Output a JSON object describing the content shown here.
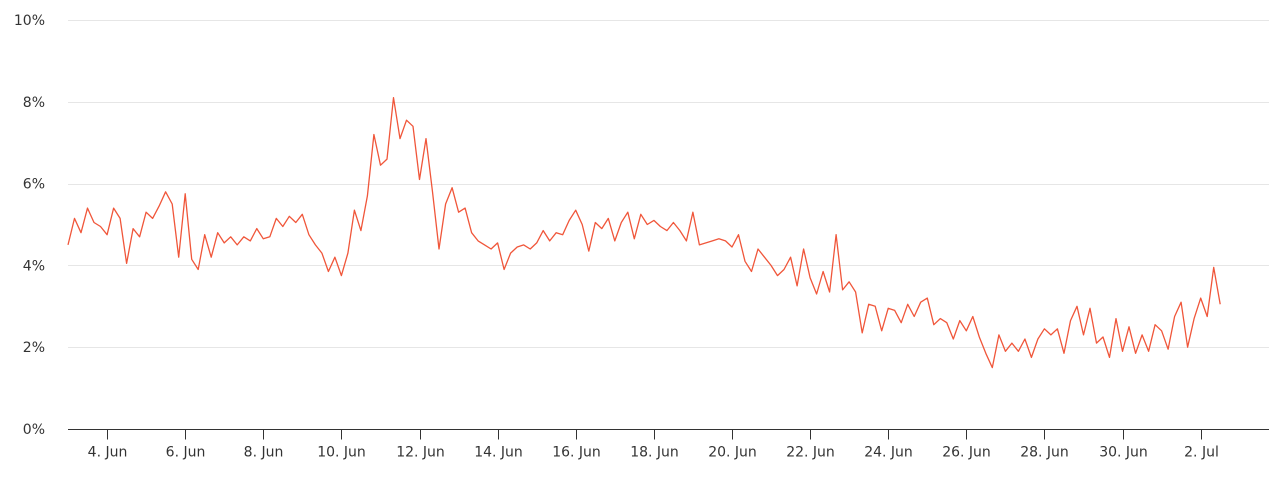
{
  "chart_data": {
    "type": "line",
    "title": "",
    "xlabel": "",
    "ylabel": "",
    "ylim": [
      0,
      10
    ],
    "y_ticks": [
      "0%",
      "2%",
      "4%",
      "6%",
      "8%",
      "10%"
    ],
    "y_tick_values": [
      0,
      2,
      4,
      6,
      8,
      10
    ],
    "x_ticks": [
      "4. Jun",
      "6. Jun",
      "8. Jun",
      "10. Jun",
      "12. Jun",
      "14. Jun",
      "16. Jun",
      "18. Jun",
      "20. Jun",
      "22. Jun",
      "24. Jun",
      "26. Jun",
      "28. Jun",
      "30. Jun",
      "2. Jul"
    ],
    "x_tick_values": [
      "2024-06-04",
      "2024-06-06",
      "2024-06-08",
      "2024-06-10",
      "2024-06-12",
      "2024-06-14",
      "2024-06-16",
      "2024-06-18",
      "2024-06-20",
      "2024-06-22",
      "2024-06-24",
      "2024-06-26",
      "2024-06-28",
      "2024-06-30",
      "2024-07-02"
    ],
    "xlim": [
      "2024-06-03 00:00",
      "2024-07-03 18:00"
    ],
    "grid": "horizontal",
    "legend": "none",
    "series": [
      {
        "color": "#f0563a",
        "points": [
          [
            "2024-06-03 00:00",
            4.5
          ],
          [
            "2024-06-03 04:00",
            5.15
          ],
          [
            "2024-06-03 08:00",
            4.8
          ],
          [
            "2024-06-03 12:00",
            5.4
          ],
          [
            "2024-06-03 16:00",
            5.05
          ],
          [
            "2024-06-03 20:00",
            4.95
          ],
          [
            "2024-06-04 00:00",
            4.75
          ],
          [
            "2024-06-04 04:00",
            5.4
          ],
          [
            "2024-06-04 08:00",
            5.15
          ],
          [
            "2024-06-04 12:00",
            4.05
          ],
          [
            "2024-06-04 16:00",
            4.9
          ],
          [
            "2024-06-04 20:00",
            4.7
          ],
          [
            "2024-06-05 00:00",
            5.3
          ],
          [
            "2024-06-05 04:00",
            5.15
          ],
          [
            "2024-06-05 08:00",
            5.45
          ],
          [
            "2024-06-05 12:00",
            5.8
          ],
          [
            "2024-06-05 16:00",
            5.5
          ],
          [
            "2024-06-05 20:00",
            4.2
          ],
          [
            "2024-06-06 00:00",
            5.75
          ],
          [
            "2024-06-06 04:00",
            4.15
          ],
          [
            "2024-06-06 08:00",
            3.9
          ],
          [
            "2024-06-06 12:00",
            4.75
          ],
          [
            "2024-06-06 16:00",
            4.2
          ],
          [
            "2024-06-06 20:00",
            4.8
          ],
          [
            "2024-06-07 00:00",
            4.55
          ],
          [
            "2024-06-07 04:00",
            4.7
          ],
          [
            "2024-06-07 08:00",
            4.5
          ],
          [
            "2024-06-07 12:00",
            4.7
          ],
          [
            "2024-06-07 16:00",
            4.6
          ],
          [
            "2024-06-07 20:00",
            4.9
          ],
          [
            "2024-06-08 00:00",
            4.65
          ],
          [
            "2024-06-08 04:00",
            4.7
          ],
          [
            "2024-06-08 08:00",
            5.15
          ],
          [
            "2024-06-08 12:00",
            4.95
          ],
          [
            "2024-06-08 16:00",
            5.2
          ],
          [
            "2024-06-08 20:00",
            5.05
          ],
          [
            "2024-06-09 00:00",
            5.25
          ],
          [
            "2024-06-09 04:00",
            4.75
          ],
          [
            "2024-06-09 08:00",
            4.5
          ],
          [
            "2024-06-09 12:00",
            4.3
          ],
          [
            "2024-06-09 16:00",
            3.85
          ],
          [
            "2024-06-09 20:00",
            4.2
          ],
          [
            "2024-06-10 00:00",
            3.75
          ],
          [
            "2024-06-10 04:00",
            4.3
          ],
          [
            "2024-06-10 08:00",
            5.35
          ],
          [
            "2024-06-10 12:00",
            4.85
          ],
          [
            "2024-06-10 16:00",
            5.7
          ],
          [
            "2024-06-10 20:00",
            7.2
          ],
          [
            "2024-06-11 00:00",
            6.45
          ],
          [
            "2024-06-11 04:00",
            6.6
          ],
          [
            "2024-06-11 08:00",
            8.1
          ],
          [
            "2024-06-11 12:00",
            7.1
          ],
          [
            "2024-06-11 16:00",
            7.55
          ],
          [
            "2024-06-11 20:00",
            7.4
          ],
          [
            "2024-06-12 00:00",
            6.1
          ],
          [
            "2024-06-12 04:00",
            7.1
          ],
          [
            "2024-06-12 08:00",
            5.8
          ],
          [
            "2024-06-12 12:00",
            4.4
          ],
          [
            "2024-06-12 16:00",
            5.5
          ],
          [
            "2024-06-12 20:00",
            5.9
          ],
          [
            "2024-06-13 00:00",
            5.3
          ],
          [
            "2024-06-13 04:00",
            5.4
          ],
          [
            "2024-06-13 08:00",
            4.8
          ],
          [
            "2024-06-13 12:00",
            4.6
          ],
          [
            "2024-06-13 16:00",
            4.5
          ],
          [
            "2024-06-13 20:00",
            4.4
          ],
          [
            "2024-06-14 00:00",
            4.55
          ],
          [
            "2024-06-14 04:00",
            3.9
          ],
          [
            "2024-06-14 08:00",
            4.3
          ],
          [
            "2024-06-14 12:00",
            4.45
          ],
          [
            "2024-06-14 16:00",
            4.5
          ],
          [
            "2024-06-14 20:00",
            4.4
          ],
          [
            "2024-06-15 00:00",
            4.55
          ],
          [
            "2024-06-15 04:00",
            4.85
          ],
          [
            "2024-06-15 08:00",
            4.6
          ],
          [
            "2024-06-15 12:00",
            4.8
          ],
          [
            "2024-06-15 16:00",
            4.75
          ],
          [
            "2024-06-15 20:00",
            5.1
          ],
          [
            "2024-06-16 00:00",
            5.35
          ],
          [
            "2024-06-16 04:00",
            5.0
          ],
          [
            "2024-06-16 08:00",
            4.35
          ],
          [
            "2024-06-16 12:00",
            5.05
          ],
          [
            "2024-06-16 16:00",
            4.9
          ],
          [
            "2024-06-16 20:00",
            5.15
          ],
          [
            "2024-06-17 00:00",
            4.6
          ],
          [
            "2024-06-17 04:00",
            5.05
          ],
          [
            "2024-06-17 08:00",
            5.3
          ],
          [
            "2024-06-17 12:00",
            4.65
          ],
          [
            "2024-06-17 16:00",
            5.25
          ],
          [
            "2024-06-17 20:00",
            5.0
          ],
          [
            "2024-06-18 00:00",
            5.1
          ],
          [
            "2024-06-18 04:00",
            4.95
          ],
          [
            "2024-06-18 08:00",
            4.85
          ],
          [
            "2024-06-18 12:00",
            5.05
          ],
          [
            "2024-06-18 16:00",
            4.85
          ],
          [
            "2024-06-18 20:00",
            4.6
          ],
          [
            "2024-06-19 00:00",
            5.3
          ],
          [
            "2024-06-19 04:00",
            4.5
          ],
          [
            "2024-06-19 08:00",
            4.55
          ],
          [
            "2024-06-19 12:00",
            4.6
          ],
          [
            "2024-06-19 16:00",
            4.65
          ],
          [
            "2024-06-19 20:00",
            4.6
          ],
          [
            "2024-06-20 00:00",
            4.45
          ],
          [
            "2024-06-20 04:00",
            4.75
          ],
          [
            "2024-06-20 08:00",
            4.1
          ],
          [
            "2024-06-20 12:00",
            3.85
          ],
          [
            "2024-06-20 16:00",
            4.4
          ],
          [
            "2024-06-20 20:00",
            4.2
          ],
          [
            "2024-06-21 00:00",
            4.0
          ],
          [
            "2024-06-21 04:00",
            3.75
          ],
          [
            "2024-06-21 08:00",
            3.9
          ],
          [
            "2024-06-21 12:00",
            4.2
          ],
          [
            "2024-06-21 16:00",
            3.5
          ],
          [
            "2024-06-21 20:00",
            4.4
          ],
          [
            "2024-06-22 00:00",
            3.7
          ],
          [
            "2024-06-22 04:00",
            3.3
          ],
          [
            "2024-06-22 08:00",
            3.85
          ],
          [
            "2024-06-22 12:00",
            3.35
          ],
          [
            "2024-06-22 16:00",
            4.75
          ],
          [
            "2024-06-22 20:00",
            3.4
          ],
          [
            "2024-06-23 00:00",
            3.6
          ],
          [
            "2024-06-23 04:00",
            3.35
          ],
          [
            "2024-06-23 08:00",
            2.35
          ],
          [
            "2024-06-23 12:00",
            3.05
          ],
          [
            "2024-06-23 16:00",
            3.0
          ],
          [
            "2024-06-23 20:00",
            2.4
          ],
          [
            "2024-06-24 00:00",
            2.95
          ],
          [
            "2024-06-24 04:00",
            2.9
          ],
          [
            "2024-06-24 08:00",
            2.6
          ],
          [
            "2024-06-24 12:00",
            3.05
          ],
          [
            "2024-06-24 16:00",
            2.75
          ],
          [
            "2024-06-24 20:00",
            3.1
          ],
          [
            "2024-06-25 00:00",
            3.2
          ],
          [
            "2024-06-25 04:00",
            2.55
          ],
          [
            "2024-06-25 08:00",
            2.7
          ],
          [
            "2024-06-25 12:00",
            2.6
          ],
          [
            "2024-06-25 16:00",
            2.2
          ],
          [
            "2024-06-25 20:00",
            2.65
          ],
          [
            "2024-06-26 00:00",
            2.4
          ],
          [
            "2024-06-26 04:00",
            2.75
          ],
          [
            "2024-06-26 08:00",
            2.25
          ],
          [
            "2024-06-26 12:00",
            1.85
          ],
          [
            "2024-06-26 16:00",
            1.5
          ],
          [
            "2024-06-26 20:00",
            2.3
          ],
          [
            "2024-06-27 00:00",
            1.9
          ],
          [
            "2024-06-27 04:00",
            2.1
          ],
          [
            "2024-06-27 08:00",
            1.9
          ],
          [
            "2024-06-27 12:00",
            2.2
          ],
          [
            "2024-06-27 16:00",
            1.75
          ],
          [
            "2024-06-27 20:00",
            2.2
          ],
          [
            "2024-06-28 00:00",
            2.45
          ],
          [
            "2024-06-28 04:00",
            2.3
          ],
          [
            "2024-06-28 08:00",
            2.45
          ],
          [
            "2024-06-28 12:00",
            1.85
          ],
          [
            "2024-06-28 16:00",
            2.65
          ],
          [
            "2024-06-28 20:00",
            3.0
          ],
          [
            "2024-06-29 00:00",
            2.3
          ],
          [
            "2024-06-29 04:00",
            2.95
          ],
          [
            "2024-06-29 08:00",
            2.1
          ],
          [
            "2024-06-29 12:00",
            2.25
          ],
          [
            "2024-06-29 16:00",
            1.75
          ],
          [
            "2024-06-29 20:00",
            2.7
          ],
          [
            "2024-06-30 00:00",
            1.9
          ],
          [
            "2024-06-30 04:00",
            2.5
          ],
          [
            "2024-06-30 08:00",
            1.85
          ],
          [
            "2024-06-30 12:00",
            2.3
          ],
          [
            "2024-06-30 16:00",
            1.9
          ],
          [
            "2024-06-30 20:00",
            2.55
          ],
          [
            "2024-07-01 00:00",
            2.4
          ],
          [
            "2024-07-01 04:00",
            1.95
          ],
          [
            "2024-07-01 08:00",
            2.75
          ],
          [
            "2024-07-01 12:00",
            3.1
          ],
          [
            "2024-07-01 16:00",
            2.0
          ],
          [
            "2024-07-01 20:00",
            2.7
          ],
          [
            "2024-07-02 00:00",
            3.2
          ],
          [
            "2024-07-02 04:00",
            2.75
          ],
          [
            "2024-07-02 08:00",
            3.95
          ],
          [
            "2024-07-02 12:00",
            3.05
          ]
        ]
      }
    ]
  }
}
